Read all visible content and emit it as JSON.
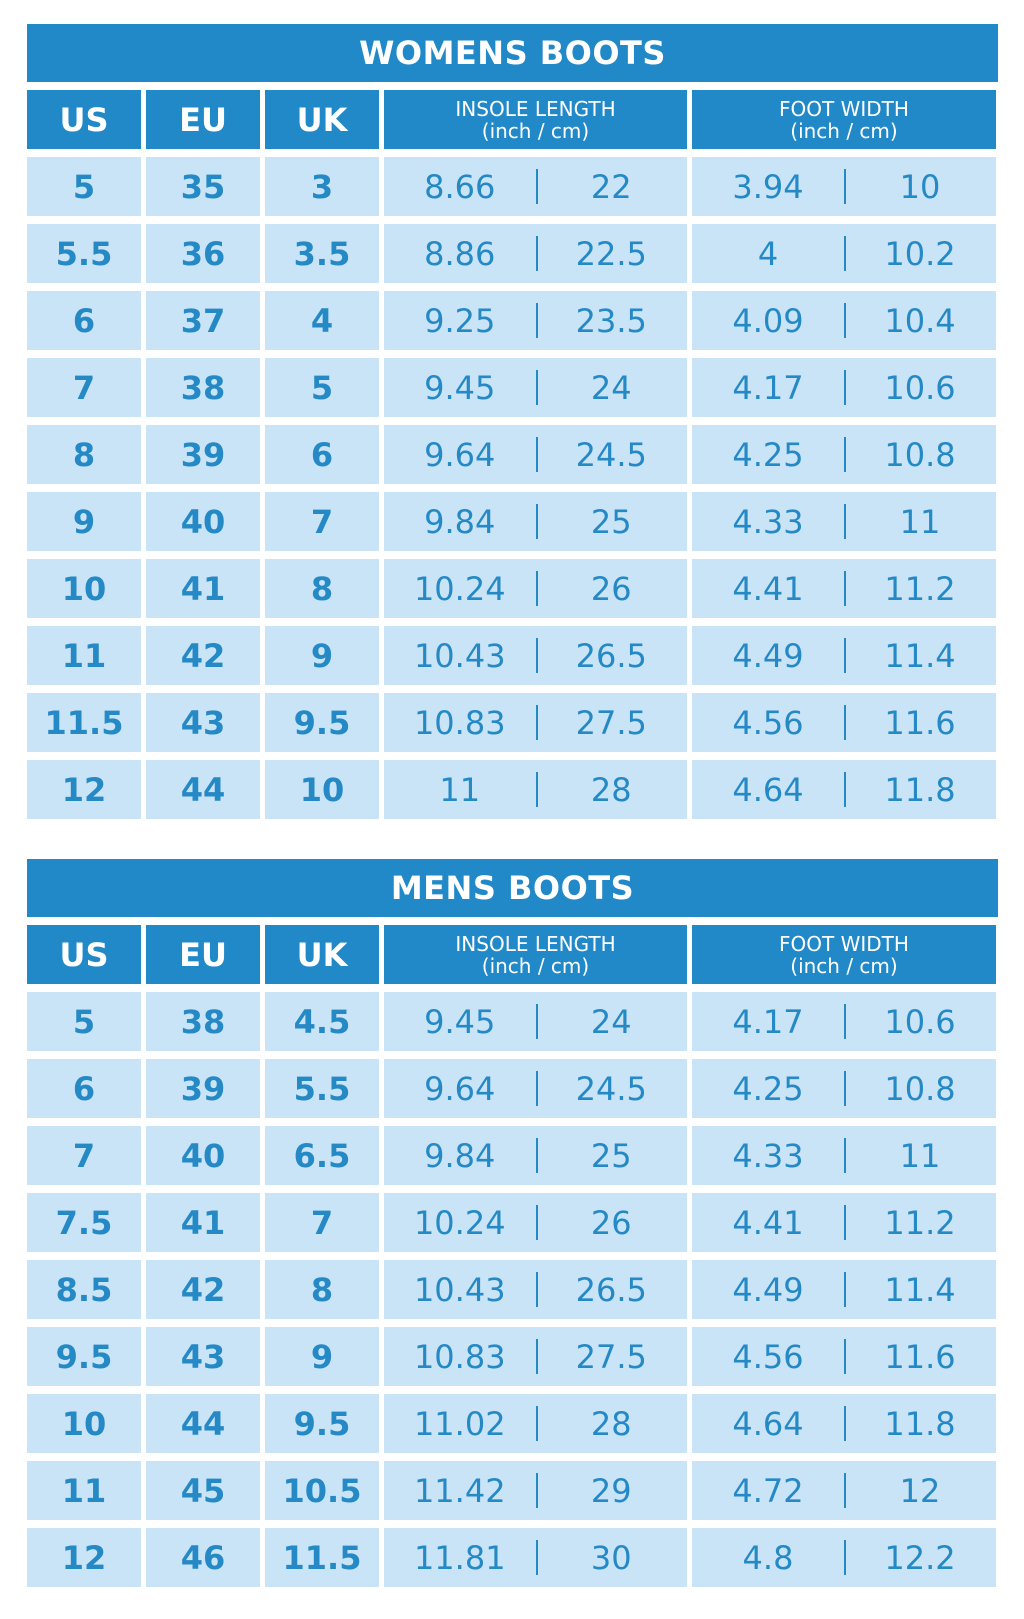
{
  "colors": {
    "header": "#2189c8",
    "cell": "#c8e4f6",
    "text": "#2589c6"
  },
  "headers": {
    "us": "US",
    "eu": "EU",
    "uk": "UK",
    "insole": "INSOLE LENGTH",
    "width": "FOOT WIDTH",
    "units": "(inch / cm)"
  },
  "womens": {
    "title": "WOMENS BOOTS",
    "rows": [
      [
        "5",
        "35",
        "3",
        "8.66",
        "22",
        "3.94",
        "10"
      ],
      [
        "5.5",
        "36",
        "3.5",
        "8.86",
        "22.5",
        "4",
        "10.2"
      ],
      [
        "6",
        "37",
        "4",
        "9.25",
        "23.5",
        "4.09",
        "10.4"
      ],
      [
        "7",
        "38",
        "5",
        "9.45",
        "24",
        "4.17",
        "10.6"
      ],
      [
        "8",
        "39",
        "6",
        "9.64",
        "24.5",
        "4.25",
        "10.8"
      ],
      [
        "9",
        "40",
        "7",
        "9.84",
        "25",
        "4.33",
        "11"
      ],
      [
        "10",
        "41",
        "8",
        "10.24",
        "26",
        "4.41",
        "11.2"
      ],
      [
        "11",
        "42",
        "9",
        "10.43",
        "26.5",
        "4.49",
        "11.4"
      ],
      [
        "11.5",
        "43",
        "9.5",
        "10.83",
        "27.5",
        "4.56",
        "11.6"
      ],
      [
        "12",
        "44",
        "10",
        "11",
        "28",
        "4.64",
        "11.8"
      ]
    ]
  },
  "mens": {
    "title": "MENS BOOTS",
    "rows": [
      [
        "5",
        "38",
        "4.5",
        "9.45",
        "24",
        "4.17",
        "10.6"
      ],
      [
        "6",
        "39",
        "5.5",
        "9.64",
        "24.5",
        "4.25",
        "10.8"
      ],
      [
        "7",
        "40",
        "6.5",
        "9.84",
        "25",
        "4.33",
        "11"
      ],
      [
        "7.5",
        "41",
        "7",
        "10.24",
        "26",
        "4.41",
        "11.2"
      ],
      [
        "8.5",
        "42",
        "8",
        "10.43",
        "26.5",
        "4.49",
        "11.4"
      ],
      [
        "9.5",
        "43",
        "9",
        "10.83",
        "27.5",
        "4.56",
        "11.6"
      ],
      [
        "10",
        "44",
        "9.5",
        "11.02",
        "28",
        "4.64",
        "11.8"
      ],
      [
        "11",
        "45",
        "10.5",
        "11.42",
        "29",
        "4.72",
        "12"
      ],
      [
        "12",
        "46",
        "11.5",
        "11.81",
        "30",
        "4.8",
        "12.2"
      ]
    ]
  }
}
